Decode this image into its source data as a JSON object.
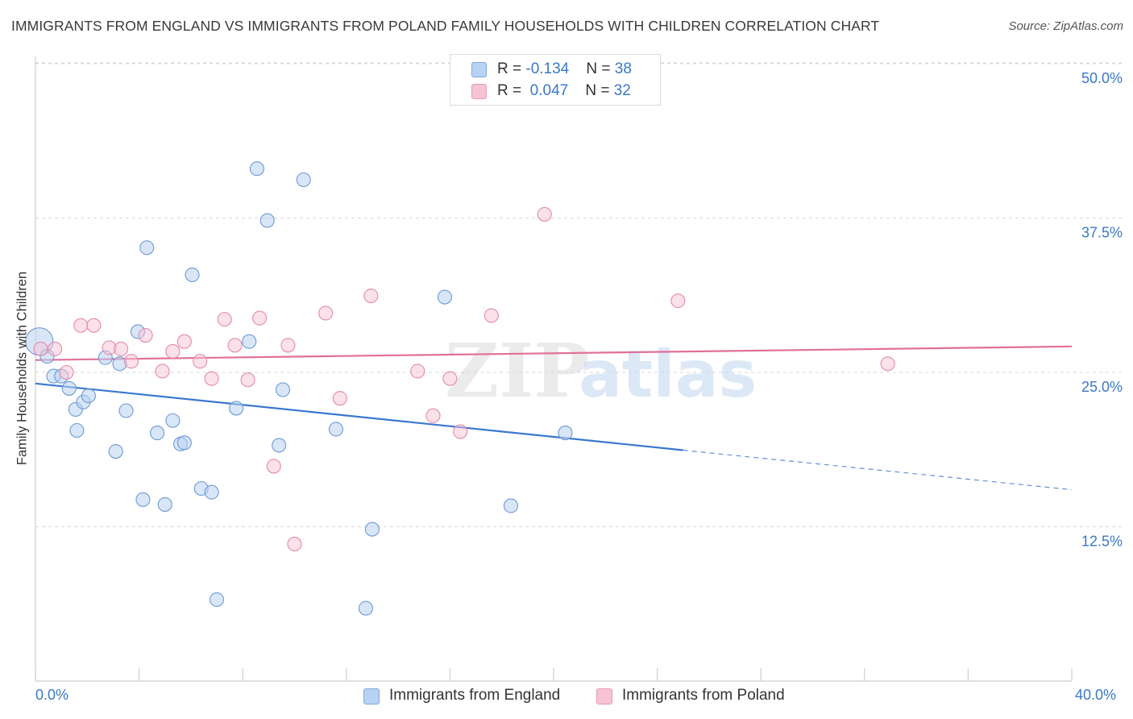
{
  "header": {
    "title": "IMMIGRANTS FROM ENGLAND VS IMMIGRANTS FROM POLAND FAMILY HOUSEHOLDS WITH CHILDREN CORRELATION CHART",
    "source": "Source: ZipAtlas.com"
  },
  "watermark": {
    "zip": "ZIP",
    "atlas": "atlas"
  },
  "legend": {
    "england": {
      "r_label": "R = ",
      "r_value": "-0.134",
      "n_label": "N = ",
      "n_value": "38",
      "color": "#a9c8f0"
    },
    "poland": {
      "r_label": "R = ",
      "r_value": "0.047",
      "n_label": "N = ",
      "n_value": "32",
      "color": "#f5b8cb"
    }
  },
  "bottom_legend": {
    "england_label": "Immigrants from England",
    "poland_label": "Immigrants from Poland"
  },
  "chart_data": {
    "type": "scatter",
    "title": "IMMIGRANTS FROM ENGLAND VS IMMIGRANTS FROM POLAND FAMILY HOUSEHOLDS WITH CHILDREN CORRELATION CHART",
    "ylabel": "Family Households with Children",
    "xlabel": "",
    "xlim": [
      0,
      40
    ],
    "ylim": [
      0,
      51.5
    ],
    "x_tick_labels": [
      "0.0%",
      "40.0%"
    ],
    "y_ticks": [
      12.5,
      25.0,
      37.5,
      50.0
    ],
    "y_tick_labels": [
      "12.5%",
      "25.0%",
      "37.5%",
      "50.0%"
    ],
    "grid": "horizontal dashed",
    "colors": {
      "england": "#3a78d0",
      "england_fill": "#b8d2f3",
      "poland": "#e0709a",
      "poland_fill": "#f7c3d3",
      "tick_label": "#3a78c9"
    },
    "series": [
      {
        "name": "Immigrants from England",
        "points": [
          [
            0.15,
            27.5
          ],
          [
            0.45,
            26.3
          ],
          [
            0.7,
            24.7
          ],
          [
            1.0,
            24.7
          ],
          [
            1.3,
            23.7
          ],
          [
            1.55,
            22.0
          ],
          [
            1.6,
            20.3
          ],
          [
            1.85,
            22.6
          ],
          [
            2.05,
            23.1
          ],
          [
            2.7,
            26.2
          ],
          [
            3.1,
            18.6
          ],
          [
            3.25,
            25.7
          ],
          [
            3.5,
            21.9
          ],
          [
            3.95,
            28.3
          ],
          [
            4.15,
            14.7
          ],
          [
            4.3,
            35.1
          ],
          [
            4.7,
            20.1
          ],
          [
            5.0,
            14.3
          ],
          [
            5.3,
            21.1
          ],
          [
            5.6,
            19.2
          ],
          [
            5.75,
            19.3
          ],
          [
            6.05,
            32.9
          ],
          [
            6.4,
            15.6
          ],
          [
            6.8,
            15.3
          ],
          [
            7.0,
            6.6
          ],
          [
            7.75,
            22.1
          ],
          [
            8.25,
            27.5
          ],
          [
            8.55,
            41.5
          ],
          [
            8.95,
            37.3
          ],
          [
            9.4,
            19.1
          ],
          [
            9.55,
            23.6
          ],
          [
            10.35,
            40.6
          ],
          [
            11.6,
            20.4
          ],
          [
            12.75,
            5.9
          ],
          [
            13.0,
            12.3
          ],
          [
            15.8,
            31.1
          ],
          [
            18.35,
            14.2
          ],
          [
            20.45,
            20.1
          ]
        ],
        "trend": {
          "x_start": 0,
          "y_start": 24.1,
          "x_end": 25,
          "y_end": 18.7,
          "x_dash_end": 40,
          "y_dash_end": 15.5
        }
      },
      {
        "name": "Immigrants from Poland",
        "points": [
          [
            0.2,
            26.9
          ],
          [
            0.75,
            26.9
          ],
          [
            1.2,
            25.0
          ],
          [
            1.75,
            28.8
          ],
          [
            2.25,
            28.8
          ],
          [
            2.85,
            27.0
          ],
          [
            3.3,
            26.9
          ],
          [
            3.7,
            25.9
          ],
          [
            4.25,
            28.0
          ],
          [
            4.9,
            25.1
          ],
          [
            5.3,
            26.7
          ],
          [
            5.75,
            27.5
          ],
          [
            6.35,
            25.9
          ],
          [
            6.8,
            24.5
          ],
          [
            7.3,
            29.3
          ],
          [
            7.7,
            27.2
          ],
          [
            8.2,
            24.4
          ],
          [
            8.65,
            29.4
          ],
          [
            9.2,
            17.4
          ],
          [
            9.75,
            27.2
          ],
          [
            10.0,
            11.1
          ],
          [
            11.2,
            29.8
          ],
          [
            11.75,
            22.9
          ],
          [
            12.95,
            31.2
          ],
          [
            14.75,
            25.1
          ],
          [
            15.35,
            21.5
          ],
          [
            16.0,
            24.5
          ],
          [
            16.4,
            20.2
          ],
          [
            17.6,
            29.6
          ],
          [
            19.65,
            37.8
          ],
          [
            24.8,
            30.8
          ],
          [
            32.9,
            25.7
          ]
        ],
        "trend": {
          "x_start": 0,
          "y_start": 26.0,
          "x_end": 40,
          "y_end": 27.1
        }
      }
    ]
  }
}
